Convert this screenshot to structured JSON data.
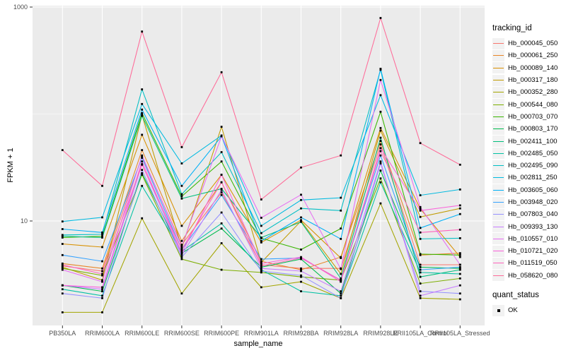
{
  "chart_data": {
    "type": "line",
    "title": "",
    "xlabel": "sample_name",
    "ylabel": "FPKM + 1",
    "y_scale": "log10",
    "ylim": [
      1,
      1000
    ],
    "y_tick_values": [
      1000,
      10
    ],
    "y_tick_labels": [
      "1000",
      "10"
    ],
    "y_minor_tick_values": [
      100
    ],
    "grid": true,
    "legend_position": "right",
    "legend_title": "tracking_id",
    "legend2_title": "quant_status",
    "legend2_items": [
      "OK"
    ],
    "marker": "square",
    "categories": [
      "PB350LA",
      "RRIM600LA",
      "RRIM600LE",
      "RRIM600SE",
      "RRIM600PE",
      "RRIM901LA",
      "RRIM928BA",
      "RRIM928LA",
      "RRIM928LE",
      "RRII105LA_Control",
      "RRII105LA_Stressed"
    ],
    "series": [
      {
        "name": "Hb_000045_050",
        "color": "#F8766D",
        "values": [
          3.8,
          3.4,
          40,
          6.0,
          18.5,
          3.9,
          3.6,
          3.6,
          52,
          3.9,
          3.9
        ]
      },
      {
        "name": "Hb_000061_250",
        "color": "#E88526",
        "values": [
          4.0,
          3.6,
          46,
          6.5,
          23,
          4.2,
          3.5,
          4.6,
          56,
          4.8,
          5.0
        ]
      },
      {
        "name": "Hb_000089_140",
        "color": "#D89000",
        "values": [
          6.1,
          5.7,
          64,
          9.0,
          27,
          6.3,
          10.2,
          4.5,
          74,
          13.0,
          4.6
        ]
      },
      {
        "name": "Hb_000317_180",
        "color": "#C09B00",
        "values": [
          3.7,
          2.8,
          98,
          5.6,
          76,
          4.1,
          10.0,
          3.2,
          70,
          10.9,
          13.1
        ]
      },
      {
        "name": "Hb_000352_280",
        "color": "#A3A500",
        "values": [
          1.4,
          1.4,
          10.6,
          2.1,
          6.2,
          2.4,
          2.7,
          1.9,
          14.6,
          1.9,
          1.85
        ]
      },
      {
        "name": "Hb_000544_080",
        "color": "#7CAE00",
        "values": [
          3.6,
          3.1,
          27,
          4.4,
          3.5,
          3.3,
          3.0,
          2.8,
          25,
          2.6,
          2.9
        ]
      },
      {
        "name": "Hb_000703_070",
        "color": "#39B600",
        "values": [
          7.0,
          7.2,
          102,
          17.0,
          36,
          6.9,
          5.4,
          8.5,
          105,
          4.9,
          4.8
        ]
      },
      {
        "name": "Hb_000803_170",
        "color": "#00BB4E",
        "values": [
          2.5,
          2.2,
          28,
          5.0,
          8.5,
          3.7,
          4.4,
          2.1,
          29.6,
          3.7,
          3.6
        ]
      },
      {
        "name": "Hb_002411_100",
        "color": "#00BF7D",
        "values": [
          7.2,
          7.0,
          96,
          16.2,
          20,
          7.0,
          9.8,
          2.9,
          60,
          3.0,
          3.5
        ]
      },
      {
        "name": "Hb_002485_050",
        "color": "#00C1A3",
        "values": [
          2.3,
          2.0,
          21.3,
          5.2,
          9.5,
          3.5,
          2.2,
          2.0,
          23,
          3.3,
          3.2
        ]
      },
      {
        "name": "Hb_002495_090",
        "color": "#00BFC4",
        "values": [
          7.4,
          7.5,
          170,
          17.8,
          44,
          7.7,
          13.1,
          12.5,
          259,
          6.8,
          6.9
        ]
      },
      {
        "name": "Hb_002811_250",
        "color": "#00BAE0",
        "values": [
          9.9,
          10.8,
          124,
          34.5,
          63,
          9.0,
          15.7,
          16.5,
          150,
          17.4,
          19.7
        ]
      },
      {
        "name": "Hb_003605_060",
        "color": "#00B0F6",
        "values": [
          8.4,
          7.8,
          110,
          21.3,
          62,
          6.5,
          10.8,
          6.8,
          265,
          8.6,
          11.6
        ]
      },
      {
        "name": "Hb_003948_020",
        "color": "#35A2FF",
        "values": [
          4.8,
          4.2,
          39,
          5.4,
          17.5,
          4.4,
          4.5,
          2.8,
          41,
          3.5,
          3.7
        ]
      },
      {
        "name": "Hb_007803_040",
        "color": "#9590FF",
        "values": [
          2.1,
          1.9,
          30,
          4.6,
          12.0,
          3.4,
          3.1,
          1.9,
          34.5,
          2.2,
          2.1
        ]
      },
      {
        "name": "Hb_009393_130",
        "color": "#C77CFF",
        "values": [
          2.5,
          2.3,
          34,
          4.8,
          19.5,
          3.6,
          3.4,
          2.2,
          36,
          2.0,
          2.5
        ]
      },
      {
        "name": "Hb_010557_010",
        "color": "#E76BF3",
        "values": [
          3.5,
          2.7,
          41,
          5.8,
          62,
          10.7,
          17.6,
          3.55,
          208,
          13.5,
          3.9
        ]
      },
      {
        "name": "Hb_010721_020",
        "color": "#FA62DB",
        "values": [
          2.5,
          2.4,
          36,
          5.0,
          27,
          4.0,
          4.6,
          2.7,
          48,
          12.5,
          14.0
        ]
      },
      {
        "name": "Hb_011519_050",
        "color": "#FF62BC",
        "values": [
          3.9,
          3.2,
          33.6,
          5.4,
          23,
          3.8,
          4.5,
          2.8,
          45,
          7.8,
          8.3
        ]
      },
      {
        "name": "Hb_058620_080",
        "color": "#FF6A98",
        "values": [
          46,
          21.3,
          590,
          49,
          246,
          15.9,
          31.6,
          41,
          790,
          53.5,
          33.6
        ]
      }
    ],
    "style": {
      "panel_bg": "#EBEBEB",
      "grid_color": "#FFFFFF",
      "tick_color": "#333333",
      "tick_label_color": "#4D4D4D",
      "marker_color": "#000000",
      "legend_key_bg": "#F2F2F2"
    }
  }
}
